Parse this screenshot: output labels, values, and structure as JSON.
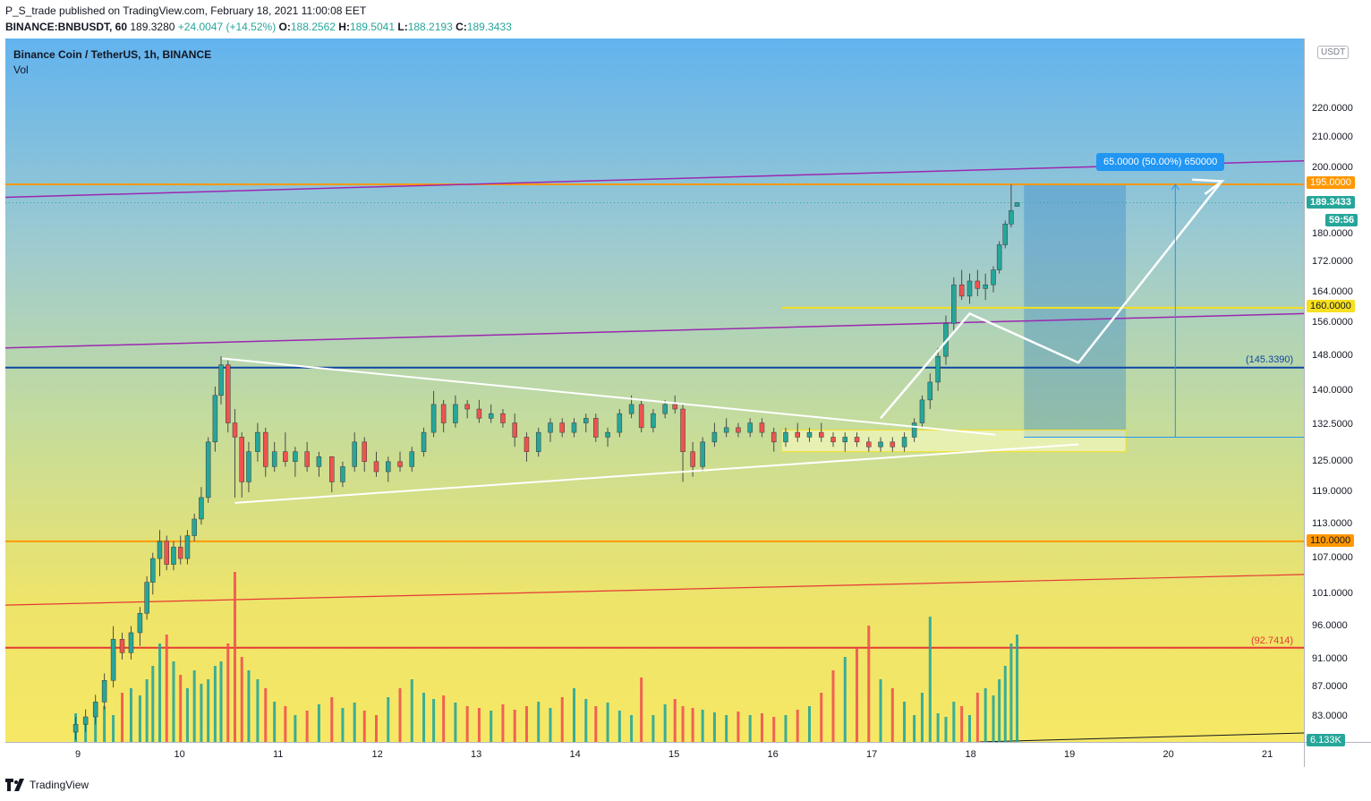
{
  "header": {
    "publish_line": "P_S_trade published on TradingView.com, February 18, 2021 11:00:08 EET",
    "symbol_line": "BINANCE:BNBUSDT, 60",
    "last": "189.3280",
    "change": "+24.0047 (+14.52%)",
    "o_label": "O:",
    "o": "188.2562",
    "h_label": "H:",
    "h": "189.5041",
    "l_label": "L:",
    "l": "188.2193",
    "c_label": "C:",
    "c": "189.3433"
  },
  "legend": {
    "symbol": "Binance Coin / TetherUS, 1h, BINANCE",
    "volume": "Vol"
  },
  "currency": "USDT",
  "price_axis": {
    "ticks": [
      "220.0000",
      "210.0000",
      "200.0000",
      "180.0000",
      "172.0000",
      "164.0000",
      "156.0000",
      "148.0000",
      "140.0000",
      "132.5000",
      "125.0000",
      "119.0000",
      "113.0000",
      "107.0000",
      "101.0000",
      "96.0000",
      "91.0000",
      "87.0000",
      "83.0000"
    ]
  },
  "time_axis": {
    "ticks": [
      "9",
      "10",
      "11",
      "12",
      "13",
      "14",
      "15",
      "16",
      "17",
      "18",
      "19",
      "20",
      "21"
    ]
  },
  "labels": {
    "l195": "195.0000",
    "last_price": "189.3433",
    "countdown": "59:56",
    "l160": "160.0000",
    "l110": "110.0000",
    "l145": "(145.3390)",
    "l92": "(92.7414)",
    "volume": "6.133K",
    "measure": "65.0000 (50.00%) 650000"
  },
  "colors": {
    "up": "#26a69a",
    "down": "#ef5350",
    "orange": "#ff9800",
    "purple": "#9c27b0",
    "navy": "#0d47a1",
    "yellow": "#f6e01f",
    "red": "#e53935",
    "measure_blue": "#2196f3"
  },
  "footer": {
    "brand": "TradingView"
  },
  "chart_data": {
    "type": "candlestick",
    "symbol": "BINANCE:BNBUSDT",
    "timeframe": "60",
    "x_range": [
      "9",
      "21"
    ],
    "y_range": [
      80,
      230
    ],
    "y_scale": "log",
    "last_ohlc": {
      "open": 188.2562,
      "high": 189.5041,
      "low": 188.2193,
      "close": 189.3433
    },
    "horizontal_levels": [
      195.0,
      160.0,
      145.339,
      110.0,
      92.7414
    ],
    "measure": {
      "from": 130.0,
      "to": 195.0,
      "text": "65.0000 (50.00%) 650000"
    },
    "volume_last": "6.133K",
    "candles": [
      {
        "d": 8.96,
        "o": 81,
        "h": 83,
        "l": 80,
        "c": 82
      },
      {
        "d": 9.06,
        "o": 82,
        "h": 84,
        "l": 81,
        "c": 83
      },
      {
        "d": 9.16,
        "o": 83,
        "h": 86,
        "l": 82,
        "c": 85
      },
      {
        "d": 9.25,
        "o": 85,
        "h": 89,
        "l": 84,
        "c": 88
      },
      {
        "d": 9.34,
        "o": 88,
        "h": 96,
        "l": 87,
        "c": 94
      },
      {
        "d": 9.43,
        "o": 94,
        "h": 95,
        "l": 91,
        "c": 92
      },
      {
        "d": 9.52,
        "o": 92,
        "h": 96,
        "l": 91,
        "c": 95
      },
      {
        "d": 9.61,
        "o": 95,
        "h": 99,
        "l": 93,
        "c": 98
      },
      {
        "d": 9.68,
        "o": 98,
        "h": 104,
        "l": 97,
        "c": 103
      },
      {
        "d": 9.74,
        "o": 103,
        "h": 108,
        "l": 101,
        "c": 107
      },
      {
        "d": 9.81,
        "o": 107,
        "h": 112,
        "l": 104,
        "c": 110
      },
      {
        "d": 9.88,
        "o": 110,
        "h": 111,
        "l": 105,
        "c": 106
      },
      {
        "d": 9.95,
        "o": 106,
        "h": 110,
        "l": 105,
        "c": 109
      },
      {
        "d": 10.02,
        "o": 109,
        "h": 111,
        "l": 106,
        "c": 107
      },
      {
        "d": 10.09,
        "o": 107,
        "h": 112,
        "l": 106,
        "c": 111
      },
      {
        "d": 10.16,
        "o": 111,
        "h": 115,
        "l": 110,
        "c": 114
      },
      {
        "d": 10.23,
        "o": 114,
        "h": 120,
        "l": 113,
        "c": 118
      },
      {
        "d": 10.3,
        "o": 118,
        "h": 130,
        "l": 117,
        "c": 129
      },
      {
        "d": 10.37,
        "o": 129,
        "h": 141,
        "l": 127,
        "c": 139
      },
      {
        "d": 10.43,
        "o": 139,
        "h": 148,
        "l": 137,
        "c": 146
      },
      {
        "d": 10.5,
        "o": 146,
        "h": 147,
        "l": 131,
        "c": 133
      },
      {
        "d": 10.57,
        "o": 133,
        "h": 136,
        "l": 118,
        "c": 130
      },
      {
        "d": 10.64,
        "o": 130,
        "h": 131,
        "l": 118,
        "c": 121
      },
      {
        "d": 10.71,
        "o": 121,
        "h": 129,
        "l": 119,
        "c": 127
      },
      {
        "d": 10.8,
        "o": 127,
        "h": 133,
        "l": 125,
        "c": 131
      },
      {
        "d": 10.88,
        "o": 131,
        "h": 132,
        "l": 122,
        "c": 124
      },
      {
        "d": 10.97,
        "o": 124,
        "h": 129,
        "l": 123,
        "c": 127
      },
      {
        "d": 11.08,
        "o": 127,
        "h": 131,
        "l": 124,
        "c": 125
      },
      {
        "d": 11.18,
        "o": 125,
        "h": 128,
        "l": 122,
        "c": 127
      },
      {
        "d": 11.3,
        "o": 127,
        "h": 129,
        "l": 123,
        "c": 124
      },
      {
        "d": 11.42,
        "o": 124,
        "h": 127,
        "l": 122,
        "c": 126
      },
      {
        "d": 11.55,
        "o": 126,
        "h": 126,
        "l": 119,
        "c": 121
      },
      {
        "d": 11.66,
        "o": 121,
        "h": 125,
        "l": 120,
        "c": 124
      },
      {
        "d": 11.78,
        "o": 124,
        "h": 131,
        "l": 123,
        "c": 129
      },
      {
        "d": 11.88,
        "o": 129,
        "h": 130,
        "l": 123,
        "c": 125
      },
      {
        "d": 12.0,
        "o": 125,
        "h": 127,
        "l": 122,
        "c": 123
      },
      {
        "d": 12.12,
        "o": 123,
        "h": 126,
        "l": 121,
        "c": 125
      },
      {
        "d": 12.24,
        "o": 125,
        "h": 127,
        "l": 123,
        "c": 124
      },
      {
        "d": 12.36,
        "o": 124,
        "h": 128,
        "l": 123,
        "c": 127
      },
      {
        "d": 12.48,
        "o": 127,
        "h": 132,
        "l": 126,
        "c": 131
      },
      {
        "d": 12.58,
        "o": 131,
        "h": 140,
        "l": 130,
        "c": 137
      },
      {
        "d": 12.68,
        "o": 137,
        "h": 138,
        "l": 131,
        "c": 133
      },
      {
        "d": 12.8,
        "o": 133,
        "h": 139,
        "l": 132,
        "c": 137
      },
      {
        "d": 12.92,
        "o": 137,
        "h": 138,
        "l": 134,
        "c": 136
      },
      {
        "d": 13.04,
        "o": 136,
        "h": 138,
        "l": 133,
        "c": 134
      },
      {
        "d": 13.16,
        "o": 134,
        "h": 137,
        "l": 133,
        "c": 135
      },
      {
        "d": 13.28,
        "o": 135,
        "h": 136,
        "l": 132,
        "c": 133
      },
      {
        "d": 13.4,
        "o": 133,
        "h": 135,
        "l": 128,
        "c": 130
      },
      {
        "d": 13.52,
        "o": 130,
        "h": 131,
        "l": 125,
        "c": 127
      },
      {
        "d": 13.64,
        "o": 127,
        "h": 132,
        "l": 126,
        "c": 131
      },
      {
        "d": 13.76,
        "o": 131,
        "h": 134,
        "l": 129,
        "c": 133
      },
      {
        "d": 13.88,
        "o": 133,
        "h": 134,
        "l": 130,
        "c": 131
      },
      {
        "d": 14.0,
        "o": 131,
        "h": 134,
        "l": 130,
        "c": 133
      },
      {
        "d": 14.12,
        "o": 133,
        "h": 135,
        "l": 131,
        "c": 134
      },
      {
        "d": 14.22,
        "o": 134,
        "h": 135,
        "l": 129,
        "c": 130
      },
      {
        "d": 14.34,
        "o": 130,
        "h": 132,
        "l": 128,
        "c": 131
      },
      {
        "d": 14.46,
        "o": 131,
        "h": 136,
        "l": 130,
        "c": 135
      },
      {
        "d": 14.58,
        "o": 135,
        "h": 139,
        "l": 134,
        "c": 137
      },
      {
        "d": 14.68,
        "o": 137,
        "h": 138,
        "l": 131,
        "c": 132
      },
      {
        "d": 14.8,
        "o": 132,
        "h": 136,
        "l": 131,
        "c": 135
      },
      {
        "d": 14.92,
        "o": 135,
        "h": 138,
        "l": 134,
        "c": 137
      },
      {
        "d": 15.02,
        "o": 137,
        "h": 139,
        "l": 135,
        "c": 136
      },
      {
        "d": 15.1,
        "o": 136,
        "h": 137,
        "l": 121,
        "c": 127
      },
      {
        "d": 15.2,
        "o": 127,
        "h": 129,
        "l": 122,
        "c": 124
      },
      {
        "d": 15.3,
        "o": 124,
        "h": 130,
        "l": 123,
        "c": 129
      },
      {
        "d": 15.42,
        "o": 129,
        "h": 133,
        "l": 128,
        "c": 131
      },
      {
        "d": 15.54,
        "o": 131,
        "h": 134,
        "l": 130,
        "c": 132
      },
      {
        "d": 15.66,
        "o": 132,
        "h": 133,
        "l": 130,
        "c": 131
      },
      {
        "d": 15.78,
        "o": 131,
        "h": 134,
        "l": 130,
        "c": 133
      },
      {
        "d": 15.9,
        "o": 133,
        "h": 134,
        "l": 130,
        "c": 131
      },
      {
        "d": 16.02,
        "o": 131,
        "h": 132,
        "l": 127,
        "c": 129
      },
      {
        "d": 16.14,
        "o": 129,
        "h": 132,
        "l": 128,
        "c": 131
      },
      {
        "d": 16.26,
        "o": 131,
        "h": 133,
        "l": 129,
        "c": 130
      },
      {
        "d": 16.38,
        "o": 130,
        "h": 132,
        "l": 129,
        "c": 131
      },
      {
        "d": 16.5,
        "o": 131,
        "h": 133,
        "l": 129,
        "c": 130
      },
      {
        "d": 16.62,
        "o": 130,
        "h": 131,
        "l": 128,
        "c": 129
      },
      {
        "d": 16.74,
        "o": 129,
        "h": 131,
        "l": 127,
        "c": 130
      },
      {
        "d": 16.86,
        "o": 130,
        "h": 131,
        "l": 128,
        "c": 129
      },
      {
        "d": 16.98,
        "o": 129,
        "h": 130,
        "l": 127,
        "c": 128
      },
      {
        "d": 17.1,
        "o": 128,
        "h": 130,
        "l": 127,
        "c": 129
      },
      {
        "d": 17.22,
        "o": 129,
        "h": 130,
        "l": 127,
        "c": 128
      },
      {
        "d": 17.34,
        "o": 128,
        "h": 131,
        "l": 127,
        "c": 130
      },
      {
        "d": 17.44,
        "o": 130,
        "h": 134,
        "l": 129,
        "c": 133
      },
      {
        "d": 17.52,
        "o": 133,
        "h": 139,
        "l": 132,
        "c": 138
      },
      {
        "d": 17.6,
        "o": 138,
        "h": 144,
        "l": 136,
        "c": 142
      },
      {
        "d": 17.68,
        "o": 142,
        "h": 150,
        "l": 140,
        "c": 148
      },
      {
        "d": 17.76,
        "o": 148,
        "h": 158,
        "l": 146,
        "c": 156
      },
      {
        "d": 17.84,
        "o": 156,
        "h": 168,
        "l": 154,
        "c": 166
      },
      {
        "d": 17.92,
        "o": 166,
        "h": 170,
        "l": 162,
        "c": 163
      },
      {
        "d": 18.0,
        "o": 163,
        "h": 169,
        "l": 161,
        "c": 167
      },
      {
        "d": 18.08,
        "o": 167,
        "h": 170,
        "l": 163,
        "c": 165
      },
      {
        "d": 18.16,
        "o": 165,
        "h": 169,
        "l": 162,
        "c": 166
      },
      {
        "d": 18.24,
        "o": 166,
        "h": 171,
        "l": 164,
        "c": 170
      },
      {
        "d": 18.3,
        "o": 170,
        "h": 178,
        "l": 169,
        "c": 177
      },
      {
        "d": 18.36,
        "o": 177,
        "h": 184,
        "l": 176,
        "c": 183
      },
      {
        "d": 18.42,
        "o": 183,
        "h": 195,
        "l": 182,
        "c": 187
      },
      {
        "d": 18.48,
        "o": 188.2562,
        "h": 189.5041,
        "l": 188.2193,
        "c": 189.3433
      }
    ]
  }
}
